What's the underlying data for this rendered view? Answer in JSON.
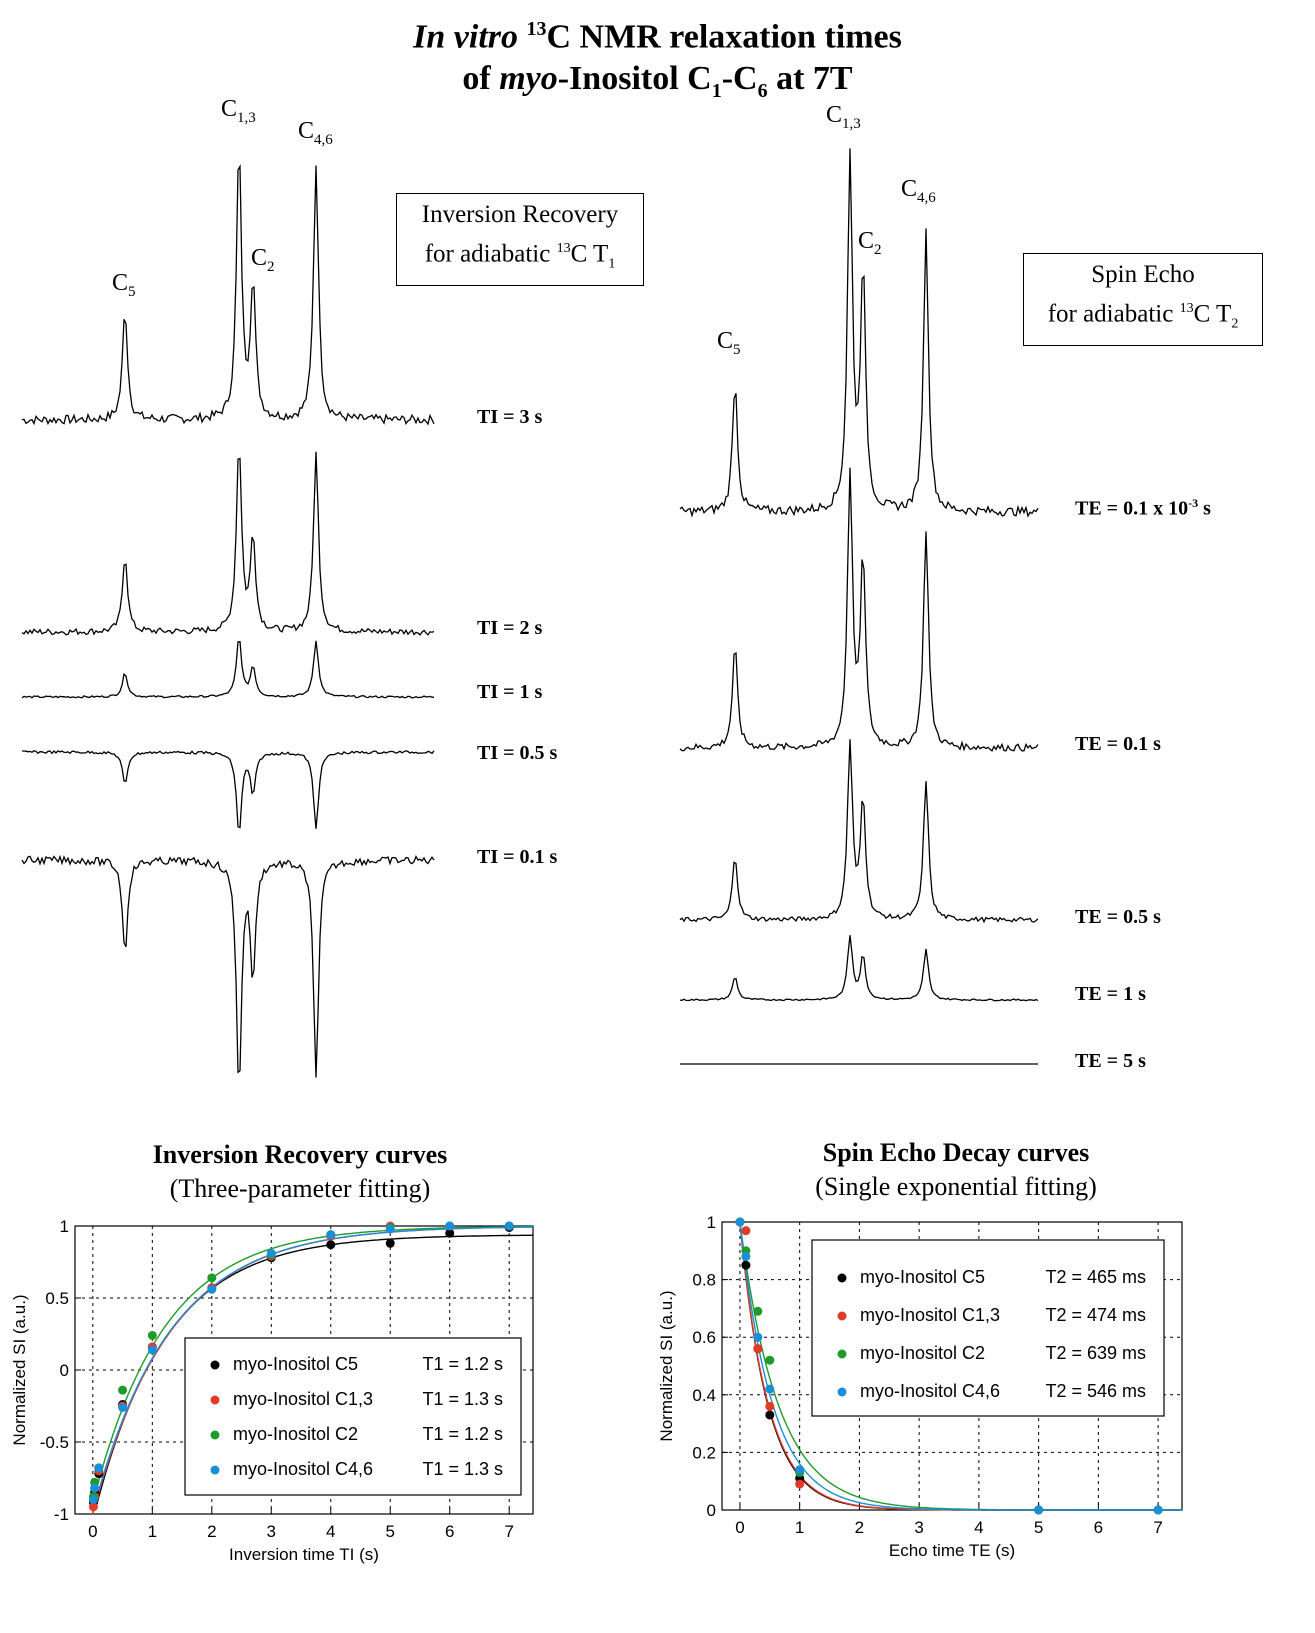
{
  "header": {
    "title_line1_italic": "In vitro",
    "title_line1_sup": "13",
    "title_line1_rest": "C NMR relaxation times",
    "title_line2_pre": "of ",
    "title_line2_italic": "myo",
    "title_line2_mid": "-Inositol C",
    "title_line2_sub1": "1",
    "title_line2_dash": "-C",
    "title_line2_sub2": "6",
    "title_line2_end": " at 7T"
  },
  "ir_panel": {
    "peaks": [
      {
        "base": "C",
        "sub": "1,3"
      },
      {
        "base": "C",
        "sub": "4,6"
      },
      {
        "base": "C",
        "sub": "2"
      },
      {
        "base": "C",
        "sub": "5"
      }
    ],
    "box_line1": "Inversion Recovery",
    "box_line2_pre": "for adiabatic ",
    "box_line2_sup": "13",
    "box_line2_mid": "C T",
    "box_line2_sub": "1",
    "spectra": [
      {
        "label": "TI = 3 s",
        "scale": 1.0
      },
      {
        "label": "TI = 2 s",
        "scale": 0.7
      },
      {
        "label": "TI = 1 s",
        "scale": 0.22
      },
      {
        "label": "TI = 0.5 s",
        "scale": -0.3
      },
      {
        "label": "TI = 0.1 s",
        "scale": -0.85
      }
    ]
  },
  "se_panel": {
    "peaks": [
      {
        "base": "C",
        "sub": "1,3"
      },
      {
        "base": "C",
        "sub": "4,6"
      },
      {
        "base": "C",
        "sub": "2"
      },
      {
        "base": "C",
        "sub": "5"
      }
    ],
    "box_line1": "Spin Echo",
    "box_line2_pre": "for adiabatic ",
    "box_line2_sup": "13",
    "box_line2_mid": "C T",
    "box_line2_sub": "2",
    "spectra": [
      {
        "label_pre": "TE = 0.1 x 10",
        "label_sup": "-3",
        "label_post": " s",
        "scale": 1.0
      },
      {
        "label_pre": "TE = 0.1 s",
        "label_sup": "",
        "label_post": "",
        "scale": 0.78
      },
      {
        "label_pre": "TE = 0.5 s",
        "label_sup": "",
        "label_post": "",
        "scale": 0.5
      },
      {
        "label_pre": "TE = 1 s",
        "label_sup": "",
        "label_post": "",
        "scale": 0.18
      },
      {
        "label_pre": "TE = 5 s",
        "label_sup": "",
        "label_post": "",
        "scale": 0.0
      }
    ]
  },
  "ir_curves": {
    "title": "Inversion Recovery curves",
    "subtitle": "(Three-parameter fitting)"
  },
  "se_curves": {
    "title": "Spin Echo Decay curves",
    "subtitle": "(Single exponential fitting)"
  },
  "chart_data": [
    {
      "type": "scatter",
      "title": "Inversion Recovery curves",
      "xlabel": "Inversion time TI (s)",
      "ylabel": "Normalized SI (a.u.)",
      "xlim": [
        -0.3,
        7.4
      ],
      "ylim": [
        -1,
        1
      ],
      "xticks": [
        0,
        1,
        2,
        3,
        4,
        5,
        6,
        7
      ],
      "yticks": [
        -1,
        -0.5,
        0,
        0.5,
        1
      ],
      "ytick_labels": [
        "-1",
        "-0.5",
        "0",
        "0.5",
        "1"
      ],
      "grid": true,
      "legend_position": "bottom-right",
      "x": [
        0.01,
        0.03,
        0.1,
        0.5,
        1,
        2,
        3,
        4,
        5,
        6,
        7
      ],
      "series": [
        {
          "name": "myo-Inositol C5",
          "fit_label": "T1 = 1.2 s",
          "color": "#000000",
          "values": [
            -0.92,
            -0.85,
            -0.72,
            -0.24,
            0.16,
            0.57,
            0.78,
            0.87,
            0.88,
            0.95,
            0.99
          ],
          "fit": {
            "a": 0.94,
            "b": 1.98,
            "T": 1.2
          }
        },
        {
          "name": "myo-Inositol C1,3",
          "fit_label": "T1 = 1.3 s",
          "color": "#e03c28",
          "values": [
            -0.95,
            -0.88,
            -0.7,
            -0.25,
            0.16,
            0.57,
            0.79,
            0.93,
            1.0,
            1.0,
            1.0
          ],
          "fit": {
            "a": 1.0,
            "b": 2.0,
            "T": 1.3
          }
        },
        {
          "name": "myo-Inositol C2",
          "fit_label": "T1 = 1.2 s",
          "color": "#1f9a2b",
          "values": [
            -0.88,
            -0.78,
            -0.68,
            -0.14,
            0.24,
            0.64,
            0.8,
            0.94,
            0.99,
            1.0,
            1.0
          ],
          "fit": {
            "a": 1.0,
            "b": 1.92,
            "T": 1.2
          }
        },
        {
          "name": "myo-Inositol C4,6",
          "fit_label": "T1 = 1.3 s",
          "color": "#1b8fd6",
          "values": [
            -0.9,
            -0.82,
            -0.68,
            -0.26,
            0.14,
            0.56,
            0.81,
            0.94,
            0.98,
            1.0,
            1.0
          ],
          "fit": {
            "a": 1.0,
            "b": 1.98,
            "T": 1.3
          }
        }
      ]
    },
    {
      "type": "scatter",
      "title": "Spin Echo Decay curves",
      "xlabel": "Echo time TE (s)",
      "ylabel": "Normalized SI (a.u.)",
      "xlim": [
        -0.3,
        7.4
      ],
      "ylim": [
        0,
        1
      ],
      "xticks": [
        0,
        1,
        2,
        3,
        4,
        5,
        6,
        7
      ],
      "yticks": [
        0,
        0.2,
        0.4,
        0.6,
        0.8,
        1
      ],
      "ytick_labels": [
        "0",
        "0.2",
        "0.4",
        "0.6",
        "0.8",
        "1"
      ],
      "grid": true,
      "legend_position": "top-right",
      "x": [
        0.0001,
        0.1,
        0.3,
        0.5,
        1,
        5,
        7
      ],
      "series": [
        {
          "name": "myo-Inositol C5",
          "fit_label": "T2 = 465 ms",
          "color": "#000000",
          "values": [
            1.0,
            0.85,
            0.56,
            0.33,
            0.11,
            0.0,
            0.0
          ],
          "T": 0.465
        },
        {
          "name": "myo-Inositol C1,3",
          "fit_label": "T2 = 474 ms",
          "color": "#e03c28",
          "values": [
            1.0,
            0.97,
            0.56,
            0.36,
            0.09,
            0.0,
            0.0
          ],
          "T": 0.474
        },
        {
          "name": "myo-Inositol C2",
          "fit_label": "T2 = 639 ms",
          "color": "#1f9a2b",
          "values": [
            1.0,
            0.9,
            0.69,
            0.52,
            0.13,
            0.0,
            0.0
          ],
          "T": 0.639
        },
        {
          "name": "myo-Inositol C4,6",
          "fit_label": "T2 = 546 ms",
          "color": "#1b8fd6",
          "values": [
            1.0,
            0.88,
            0.6,
            0.42,
            0.14,
            0.0,
            0.0
          ],
          "T": 0.546
        }
      ]
    }
  ]
}
